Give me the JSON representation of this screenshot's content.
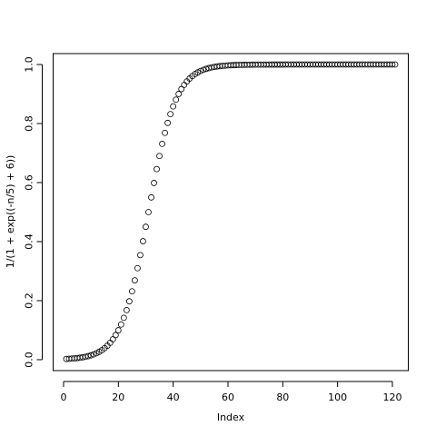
{
  "chart_data": {
    "type": "scatter",
    "x_label": "Index",
    "y_label": "1/(1 + exp((-n/5) + 6))",
    "x": [
      1,
      2,
      3,
      4,
      5,
      6,
      7,
      8,
      9,
      10,
      11,
      12,
      13,
      14,
      15,
      16,
      17,
      18,
      19,
      20,
      21,
      22,
      23,
      24,
      25,
      26,
      27,
      28,
      29,
      30,
      31,
      32,
      33,
      34,
      35,
      36,
      37,
      38,
      39,
      40,
      41,
      42,
      43,
      44,
      45,
      46,
      47,
      48,
      49,
      50,
      51,
      52,
      53,
      54,
      55,
      56,
      57,
      58,
      59,
      60,
      61,
      62,
      63,
      64,
      65,
      66,
      67,
      68,
      69,
      70,
      71,
      72,
      73,
      74,
      75,
      76,
      77,
      78,
      79,
      80,
      81,
      82,
      83,
      84,
      85,
      86,
      87,
      88,
      89,
      90,
      91,
      92,
      93,
      94,
      95,
      96,
      97,
      98,
      99,
      100,
      101,
      102,
      103,
      104,
      105,
      106,
      107,
      108,
      109,
      110,
      111,
      112,
      113,
      114,
      115,
      116,
      117,
      118,
      119,
      120,
      121
    ],
    "values": [
      0.0025,
      0.003,
      0.0037,
      0.0045,
      0.0055,
      0.0067,
      0.0082,
      0.0099,
      0.0121,
      0.0148,
      0.018,
      0.0219,
      0.0266,
      0.0323,
      0.0392,
      0.0474,
      0.0573,
      0.0691,
      0.0832,
      0.0998,
      0.1192,
      0.1419,
      0.168,
      0.1978,
      0.2315,
      0.2689,
      0.31,
      0.3543,
      0.4013,
      0.4502,
      0.5,
      0.5498,
      0.5987,
      0.6457,
      0.69,
      0.7311,
      0.7685,
      0.8022,
      0.832,
      0.8581,
      0.8808,
      0.9002,
      0.9168,
      0.9309,
      0.9427,
      0.9526,
      0.9608,
      0.9677,
      0.9734,
      0.9781,
      0.982,
      0.9852,
      0.9879,
      0.99,
      0.9918,
      0.9933,
      0.9945,
      0.9955,
      0.9963,
      0.997,
      0.9975,
      0.998,
      0.9983,
      0.9986,
      0.9989,
      0.9991,
      0.9993,
      0.9994,
      0.9995,
      0.9996,
      0.9997,
      0.9997,
      0.9998,
      0.9998,
      0.9998,
      0.9999,
      0.9999,
      0.9999,
      0.9999,
      0.9999,
      1,
      1,
      1,
      1,
      1,
      1,
      1,
      1,
      1,
      1,
      1,
      1,
      1,
      1,
      1,
      1,
      1,
      1,
      1,
      1,
      1,
      1,
      1,
      1,
      1,
      1,
      1,
      1,
      1,
      1,
      1,
      1,
      1,
      1,
      1,
      1,
      1,
      1,
      1,
      1,
      1
    ],
    "color": "#000000",
    "xlim": [
      -3.8,
      125.8
    ],
    "ylim": [
      -0.037,
      1.037
    ],
    "xticks": [
      0,
      20,
      40,
      60,
      80,
      100,
      120
    ],
    "yticks": [
      {
        "value": 0,
        "label": "0.0"
      },
      0.2,
      0.4,
      0.6,
      0.8,
      {
        "value": 1,
        "label": "1.0"
      }
    ]
  }
}
